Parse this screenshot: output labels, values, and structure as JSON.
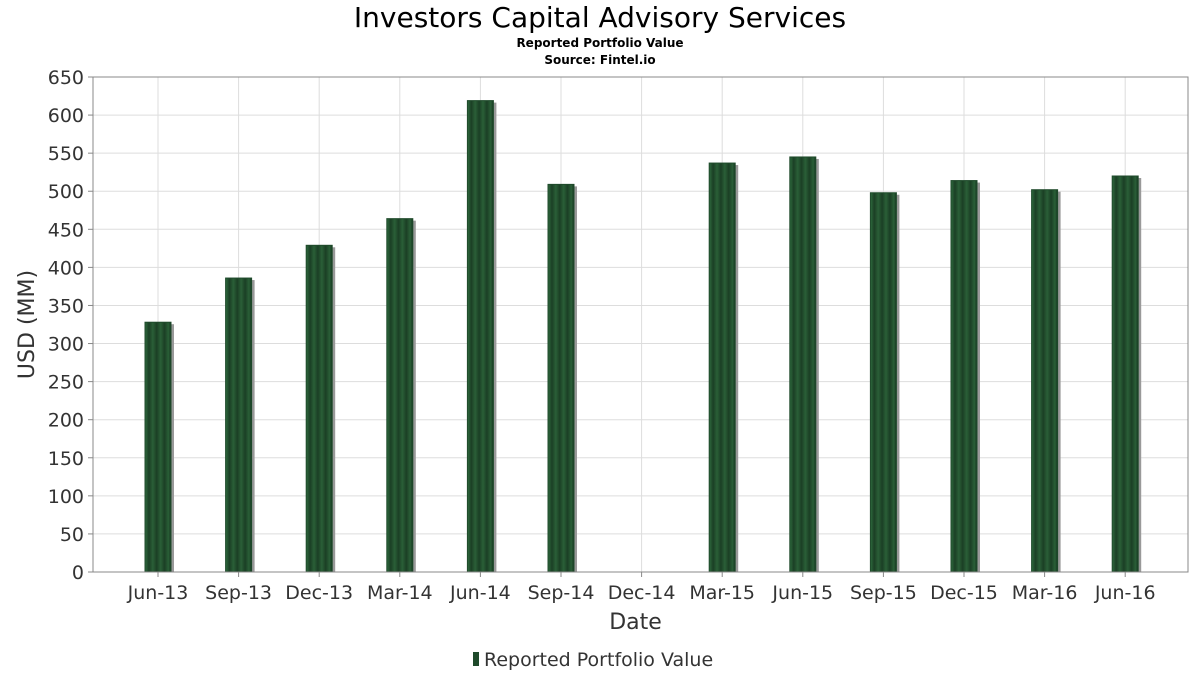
{
  "chart_data": {
    "type": "bar",
    "title": "Investors Capital Advisory Services",
    "subtitle": "Reported Portfolio Value",
    "source": "Source: Fintel.io",
    "xlabel": "Date",
    "ylabel": "USD (MM)",
    "ylim": [
      0,
      650
    ],
    "yticks": [
      0,
      50,
      100,
      150,
      200,
      250,
      300,
      350,
      400,
      450,
      500,
      550,
      600,
      650
    ],
    "categories": [
      "Jun-13",
      "Sep-13",
      "Dec-13",
      "Mar-14",
      "Jun-14",
      "Sep-14",
      "Dec-14",
      "Mar-15",
      "Jun-15",
      "Sep-15",
      "Dec-15",
      "Mar-16",
      "Jun-16"
    ],
    "series": [
      {
        "name": "Reported Portfolio Value",
        "values": [
          328,
          386,
          429,
          464,
          619,
          509,
          null,
          537,
          545,
          498,
          514,
          502,
          520
        ]
      }
    ],
    "grid": true,
    "legend": "bottom-center",
    "colors": {
      "bar": "#1f4a2b",
      "bar_shadow": "#999999",
      "grid": "#dddddd"
    }
  }
}
